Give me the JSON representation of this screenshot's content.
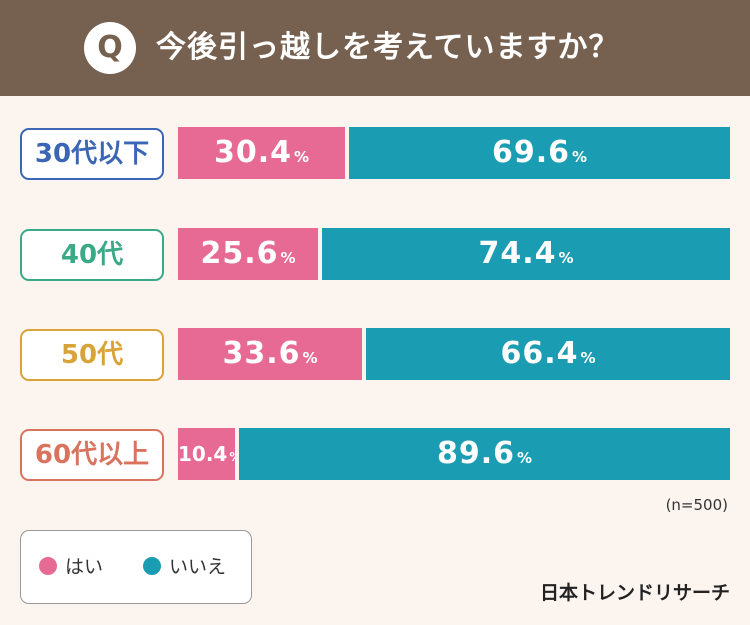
{
  "header": {
    "q_mark": "Q",
    "title": "今後引っ越しを考えていますか？"
  },
  "chart_data": {
    "type": "bar",
    "orientation": "horizontal",
    "stacked": true,
    "title": "今後引っ越しを考えていますか？",
    "categories": [
      "30代以下",
      "40代",
      "50代",
      "60代以上"
    ],
    "series": [
      {
        "name": "はい",
        "values": [
          30.4,
          25.6,
          33.6,
          10.4
        ],
        "color": "#e76a95"
      },
      {
        "name": "いいえ",
        "values": [
          69.6,
          74.4,
          66.4,
          89.6
        ],
        "color": "#1a9db2"
      }
    ],
    "category_colors": [
      "#3a66b5",
      "#3aaa86",
      "#d9a338",
      "#d9735e"
    ],
    "unit": "%",
    "ylim": [
      0,
      100
    ],
    "sample_note": "(n=500)"
  },
  "legend": {
    "yes": "はい",
    "no": "いいえ"
  },
  "brand": "日本トレンドリサーチ"
}
